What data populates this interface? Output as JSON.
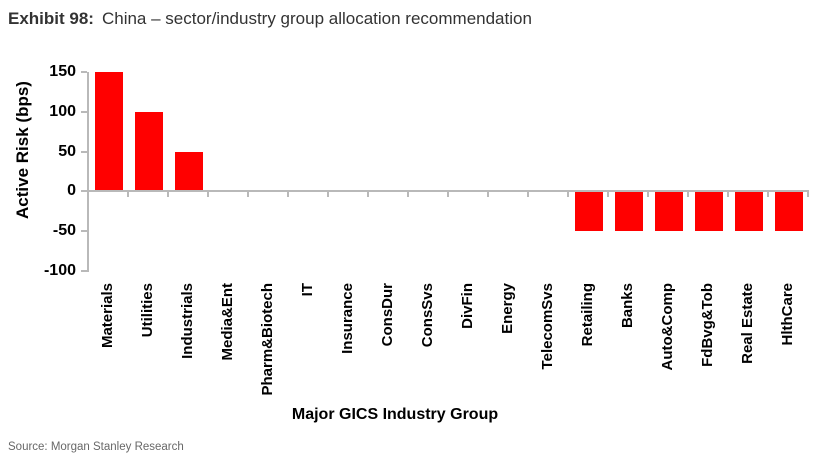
{
  "header": {
    "exhibit_label": "Exhibit 98:",
    "title": "China – sector/industry group allocation recommendation"
  },
  "source": "Source: Morgan Stanley Research",
  "colors": {
    "bar": "#FF0000",
    "axis": "#b9b9b9",
    "title_text": "#333333",
    "axis_text": "#000000",
    "source_text": "#686868"
  },
  "chart_data": {
    "type": "bar",
    "title": "China – sector/industry group allocation recommendation",
    "categories": [
      "Materials",
      "Utilities",
      "Industrials",
      "Media&Ent",
      "Pharm&Biotech",
      "IT",
      "Insurance",
      "ConsDur",
      "ConsSvs",
      "DivFin",
      "Energy",
      "TelecomSvs",
      "Retailing",
      "Banks",
      "Auto&Comp",
      "FdBvg&Tob",
      "Real Estate",
      "HlthCare"
    ],
    "values": [
      150,
      100,
      50,
      0,
      0,
      0,
      0,
      0,
      0,
      0,
      0,
      0,
      -50,
      -50,
      -50,
      -50,
      -50,
      -50
    ],
    "xlabel": "Major GICS Industry Group",
    "ylabel": "Active Risk (bps)",
    "ylim": [
      -100,
      150
    ],
    "yticks": [
      150,
      100,
      50,
      0,
      -50,
      -100
    ],
    "grid": false,
    "legend": false,
    "bar_color": "#FF0000"
  }
}
